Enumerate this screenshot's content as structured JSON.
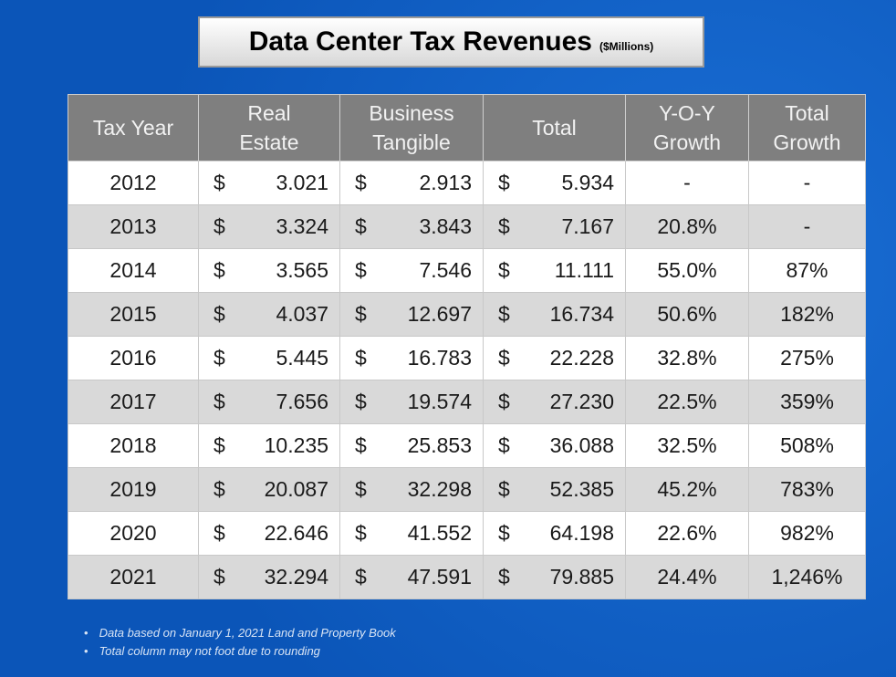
{
  "header": {
    "title": "Data Center Tax Revenues",
    "subtitle": "($Millions)"
  },
  "table": {
    "currency_symbol": "$",
    "columns": [
      [
        "Tax Year"
      ],
      [
        "Real",
        "Estate"
      ],
      [
        "Business",
        "Tangible"
      ],
      [
        "Total"
      ],
      [
        "Y-O-Y",
        "Growth"
      ],
      [
        "Total",
        "Growth"
      ]
    ],
    "rows": [
      [
        "2012",
        "3.021",
        "2.913",
        "5.934",
        "-",
        "-"
      ],
      [
        "2013",
        "3.324",
        "3.843",
        "7.167",
        "20.8%",
        "-"
      ],
      [
        "2014",
        "3.565",
        "7.546",
        "11.111",
        "55.0%",
        "87%"
      ],
      [
        "2015",
        "4.037",
        "12.697",
        "16.734",
        "50.6%",
        "182%"
      ],
      [
        "2016",
        "5.445",
        "16.783",
        "22.228",
        "32.8%",
        "275%"
      ],
      [
        "2017",
        "7.656",
        "19.574",
        "27.230",
        "22.5%",
        "359%"
      ],
      [
        "2018",
        "10.235",
        "25.853",
        "36.088",
        "32.5%",
        "508%"
      ],
      [
        "2019",
        "20.087",
        "32.298",
        "52.385",
        "45.2%",
        "783%"
      ],
      [
        "2020",
        "22.646",
        "41.552",
        "64.198",
        "22.6%",
        "982%"
      ],
      [
        "2021",
        "32.294",
        "47.591",
        "79.885",
        "24.4%",
        "1,246%"
      ]
    ]
  },
  "footnotes": [
    "Data based on January 1, 2021 Land and Property Book",
    "Total column may not foot due to rounding"
  ]
}
